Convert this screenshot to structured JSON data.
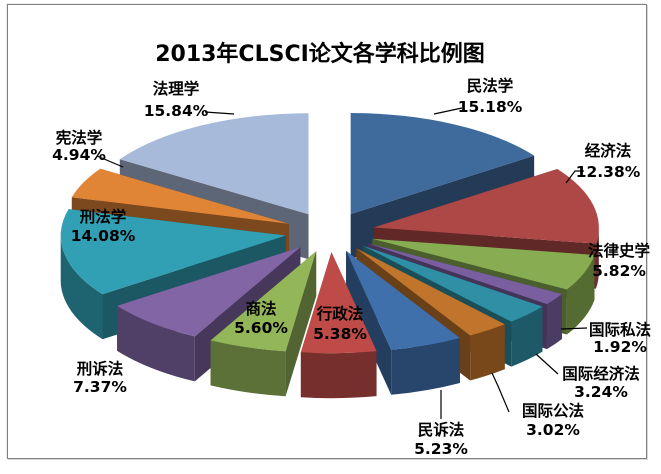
{
  "frame": {
    "border_color": "#808080",
    "background": "#ffffff"
  },
  "chart_data": {
    "type": "pie",
    "style": "3d-exploded-pie",
    "title": "2013年CLSCI论文各学科比例图",
    "legend": "none",
    "unit": "percent",
    "categories": [
      "民法学",
      "经济法",
      "法律史学",
      "国际私法",
      "国际经济法",
      "国际公法",
      "民诉法",
      "行政法",
      "商法",
      "刑诉法",
      "刑法学",
      "宪法学",
      "法理学"
    ],
    "values": [
      15.18,
      12.38,
      5.82,
      1.92,
      3.24,
      3.02,
      5.23,
      5.38,
      5.6,
      7.37,
      14.08,
      4.94,
      15.84
    ],
    "labels": [
      "15.18%",
      "12.38%",
      "5.82%",
      "1.92%",
      "3.24%",
      "3.02%",
      "5.23%",
      "5.38%",
      "5.60%",
      "7.37%",
      "14.08%",
      "4.94%",
      "15.84%"
    ],
    "colors": [
      "#3F6B9C",
      "#AE4846",
      "#87AC51",
      "#7A5FA0",
      "#2F8FA4",
      "#C1742B",
      "#4070AC",
      "#BE4B48",
      "#93B659",
      "#8165A5",
      "#31A0B4",
      "#E08435",
      "#A8BAD9"
    ],
    "label_text_color": "#000000",
    "leader_line_color": "#000000"
  }
}
